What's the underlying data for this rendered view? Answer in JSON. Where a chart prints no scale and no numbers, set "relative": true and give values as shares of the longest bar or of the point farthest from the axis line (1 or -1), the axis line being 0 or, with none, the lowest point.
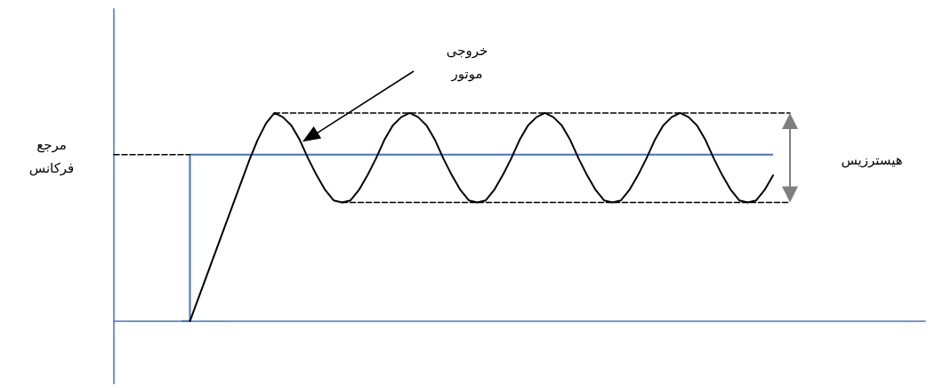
{
  "chart_data": {
    "type": "line",
    "relative": true,
    "grid": false,
    "marker": "none",
    "categories": [
      null,
      null,
      null,
      null,
      null,
      null,
      null,
      null,
      null,
      null,
      null,
      null,
      null,
      null,
      null,
      null,
      null,
      null,
      null,
      null,
      null,
      null,
      null,
      null,
      null,
      null,
      null,
      null,
      null,
      null,
      null,
      null,
      null,
      null,
      null,
      null,
      null,
      null,
      null,
      null,
      null,
      null,
      null,
      null,
      null,
      null,
      null,
      null,
      null,
      null,
      null,
      null,
      null,
      null,
      null,
      null,
      null,
      null,
      null,
      null,
      null,
      null,
      null,
      null,
      null,
      null,
      null,
      null,
      null,
      null,
      null,
      null,
      null,
      null,
      null,
      null,
      null,
      null,
      null,
      null,
      null,
      null,
      null,
      null,
      null,
      null,
      null,
      null,
      null,
      null,
      null,
      null,
      null,
      null,
      null,
      null,
      null
    ],
    "series": [
      {
        "color": "#000000",
        "line_style": "solid",
        "values": [
          null,
          null,
          null,
          null,
          null,
          null,
          null,
          null,
          null,
          0,
          0.11,
          0.22,
          0.33,
          0.44,
          0.55,
          0.66,
          0.77,
          0.87,
          0.95,
          1,
          0.98,
          0.94,
          0.87,
          0.78,
          0.7,
          0.63,
          0.58,
          0.57,
          0.58,
          0.63,
          0.7,
          0.78,
          0.87,
          0.94,
          0.98,
          1,
          0.98,
          0.94,
          0.87,
          0.78,
          0.7,
          0.63,
          0.58,
          0.57,
          0.58,
          0.63,
          0.7,
          0.78,
          0.87,
          0.94,
          0.98,
          1,
          0.98,
          0.94,
          0.87,
          0.78,
          0.7,
          0.63,
          0.58,
          0.57,
          0.58,
          0.63,
          0.7,
          0.78,
          0.87,
          0.94,
          0.98,
          1,
          0.98,
          0.94,
          0.87,
          0.78,
          0.7,
          0.63,
          0.58,
          0.57,
          0.58,
          0.63,
          0.7,
          null,
          null,
          null,
          null,
          null,
          null,
          null,
          null,
          null,
          null,
          null,
          null,
          null,
          null,
          null,
          null,
          null,
          null
        ]
      },
      {
        "type": "step",
        "color": "#4472c4",
        "line_style": "solid",
        "values": [
          null,
          null,
          null,
          null,
          null,
          null,
          null,
          null,
          0,
          0.8,
          0.8,
          0.8,
          0.8,
          0.8,
          0.8,
          0.8,
          0.8,
          0.8,
          0.8,
          0.8,
          0.8,
          0.8,
          0.8,
          0.8,
          0.8,
          0.8,
          0.8,
          0.8,
          0.8,
          0.8,
          0.8,
          0.8,
          0.8,
          0.8,
          0.8,
          0.8,
          0.8,
          0.8,
          0.8,
          0.8,
          0.8,
          0.8,
          0.8,
          0.8,
          0.8,
          0.8,
          0.8,
          0.8,
          0.8,
          0.8,
          0.8,
          0.8,
          0.8,
          0.8,
          0.8,
          0.8,
          0.8,
          0.8,
          0.8,
          0.8,
          0.8,
          0.8,
          0.8,
          0.8,
          0.8,
          0.8,
          0.8,
          0.8,
          0.8,
          0.8,
          0.8,
          0.8,
          0.8,
          0.8,
          0.8,
          0.8,
          0.8,
          0.8,
          0.8,
          null,
          null,
          null,
          null,
          null,
          null,
          null,
          null,
          null,
          null,
          null,
          null,
          null,
          null,
          null,
          null,
          null,
          null
        ]
      },
      {
        "color": "#000000",
        "line_style": "dashed",
        "values": [
          0.8,
          0.8,
          0.8,
          0.8,
          0.8,
          0.8,
          0.8,
          0.8,
          0.8,
          0.8,
          null,
          null,
          null,
          null,
          null,
          null,
          null,
          null,
          null,
          null,
          null,
          null,
          null,
          null,
          null,
          null,
          null,
          null,
          null,
          null,
          null,
          null,
          null,
          null,
          null,
          null,
          null,
          null,
          null,
          null,
          null,
          null,
          null,
          null,
          null,
          null,
          null,
          null,
          null,
          null,
          null,
          null,
          null,
          null,
          null,
          null,
          null,
          null,
          null,
          null,
          null,
          null,
          null,
          null,
          null,
          null,
          null,
          null,
          null,
          null,
          null,
          null,
          null,
          null,
          null,
          null,
          null,
          null,
          null,
          null,
          null,
          null,
          null,
          null,
          null,
          null,
          null,
          null,
          null,
          null,
          null,
          null,
          null,
          null,
          null,
          null,
          null
        ]
      },
      {
        "color": "#000000",
        "line_style": "dashed",
        "values": [
          null,
          null,
          null,
          null,
          null,
          null,
          null,
          null,
          null,
          null,
          null,
          null,
          null,
          null,
          null,
          null,
          null,
          null,
          null,
          1,
          1,
          1,
          1,
          1,
          1,
          1,
          1,
          1,
          1,
          1,
          1,
          1,
          1,
          1,
          1,
          1,
          1,
          1,
          1,
          1,
          1,
          1,
          1,
          1,
          1,
          1,
          1,
          1,
          1,
          1,
          1,
          1,
          1,
          1,
          1,
          1,
          1,
          1,
          1,
          1,
          1,
          1,
          1,
          1,
          1,
          1,
          1,
          1,
          1,
          1,
          1,
          1,
          1,
          1,
          1,
          1,
          1,
          1,
          1,
          1,
          1,
          null,
          null,
          null,
          null,
          null,
          null,
          null,
          null,
          null,
          null,
          null,
          null,
          null,
          null,
          null,
          null
        ]
      },
      {
        "color": "#000000",
        "line_style": "dashed",
        "values": [
          null,
          null,
          null,
          null,
          null,
          null,
          null,
          null,
          null,
          null,
          null,
          null,
          null,
          null,
          null,
          null,
          null,
          null,
          null,
          null,
          null,
          null,
          null,
          null,
          null,
          null,
          null,
          0.57,
          0.57,
          0.57,
          0.57,
          0.57,
          0.57,
          0.57,
          0.57,
          0.57,
          0.57,
          0.57,
          0.57,
          0.57,
          0.57,
          0.57,
          0.57,
          0.57,
          0.57,
          0.57,
          0.57,
          0.57,
          0.57,
          0.57,
          0.57,
          0.57,
          0.57,
          0.57,
          0.57,
          0.57,
          0.57,
          0.57,
          0.57,
          0.57,
          0.57,
          0.57,
          0.57,
          0.57,
          0.57,
          0.57,
          0.57,
          0.57,
          0.57,
          0.57,
          0.57,
          0.57,
          0.57,
          0.57,
          0.57,
          0.57,
          0.57,
          0.57,
          0.57,
          0.57,
          0.57,
          null,
          null,
          null,
          null,
          null,
          null,
          null,
          null,
          null,
          null,
          null,
          null,
          null,
          null,
          null,
          null
        ]
      }
    ],
    "annotations": [
      "مرجع فرکانس",
      "خروجی موتور",
      "هیسترزیس"
    ]
  }
}
